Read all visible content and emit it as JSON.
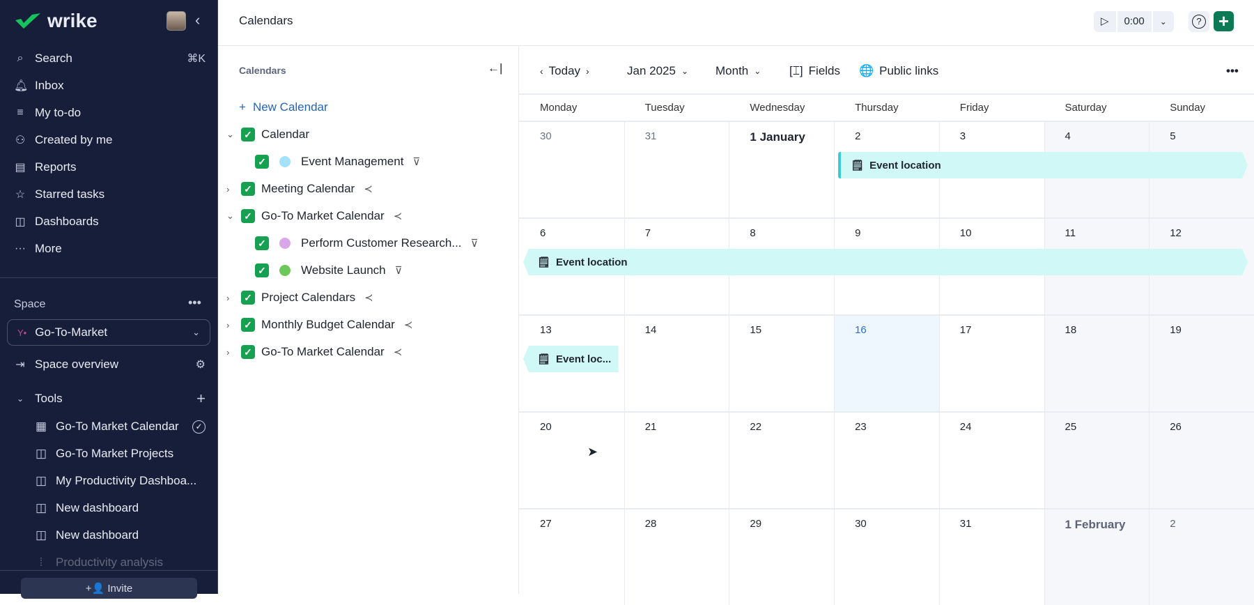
{
  "sidebar": {
    "logo": "wrike",
    "nav": [
      {
        "label": "Search",
        "icon": "search-icon",
        "shortcut": "⌘K"
      },
      {
        "label": "Inbox",
        "icon": "bell-icon"
      },
      {
        "label": "My to-do",
        "icon": "todo-icon"
      },
      {
        "label": "Created by me",
        "icon": "created-icon"
      },
      {
        "label": "Reports",
        "icon": "reports-icon"
      },
      {
        "label": "Starred tasks",
        "icon": "star-icon"
      },
      {
        "label": "Dashboards",
        "icon": "dashboard-icon"
      },
      {
        "label": "More",
        "icon": "more-icon"
      }
    ],
    "space_label": "Space",
    "space_selected": "Go-To-Market",
    "space_overview": "Space overview",
    "tools_label": "Tools",
    "tools": [
      {
        "label": "Go-To Market Calendar",
        "icon": "calendar-icon"
      },
      {
        "label": "Go-To Market Projects",
        "icon": "dashboard-icon"
      },
      {
        "label": "My Productivity Dashboa...",
        "icon": "dashboard-icon"
      },
      {
        "label": "New dashboard",
        "icon": "dashboard-icon"
      },
      {
        "label": "New dashboard",
        "icon": "dashboard-icon"
      },
      {
        "label": "Productivity analysis",
        "icon": "analysis-icon"
      }
    ],
    "invite": "Invite"
  },
  "header": {
    "title": "Calendars",
    "timer": "0:00"
  },
  "calendars_panel": {
    "title": "Calendars",
    "new_calendar": "New Calendar",
    "items": [
      {
        "label": "Calendar",
        "level": 0,
        "expanded": true,
        "checked": true
      },
      {
        "label": "Event Management",
        "level": 1,
        "checked": true,
        "color": "#a6e1fa",
        "trail": "filter-icon"
      },
      {
        "label": "Meeting Calendar",
        "level": 0,
        "expanded": false,
        "checked": true,
        "trail": "share-icon"
      },
      {
        "label": "Go-To Market Calendar",
        "level": 0,
        "expanded": true,
        "checked": true,
        "trail": "share-icon"
      },
      {
        "label": "Perform Customer Research...",
        "level": 1,
        "checked": true,
        "color": "#d9a7e8",
        "trail": "filter-icon"
      },
      {
        "label": "Website Launch",
        "level": 1,
        "checked": true,
        "color": "#6cc85a",
        "trail": "filter-icon"
      },
      {
        "label": "Project Calendars",
        "level": 0,
        "expanded": false,
        "checked": true,
        "trail": "share-icon"
      },
      {
        "label": "Monthly Budget Calendar",
        "level": 0,
        "expanded": false,
        "checked": true,
        "trail": "share-icon"
      },
      {
        "label": "Go-To Market Calendar",
        "level": 0,
        "expanded": false,
        "checked": true,
        "trail": "share-icon"
      }
    ]
  },
  "toolbar": {
    "today": "Today",
    "period": "Jan 2025",
    "view": "Month",
    "fields": "Fields",
    "public_links": "Public links"
  },
  "calendar": {
    "days": [
      "Monday",
      "Tuesday",
      "Wednesday",
      "Thursday",
      "Friday",
      "Saturday",
      "Sunday"
    ],
    "weeks": [
      [
        "30",
        "31",
        "1 January",
        "2",
        "3",
        "4",
        "5"
      ],
      [
        "6",
        "7",
        "8",
        "9",
        "10",
        "11",
        "12"
      ],
      [
        "13",
        "14",
        "15",
        "16",
        "17",
        "18",
        "19"
      ],
      [
        "20",
        "21",
        "22",
        "23",
        "24",
        "25",
        "26"
      ],
      [
        "27",
        "28",
        "29",
        "30",
        "31",
        "1 February",
        "2"
      ]
    ],
    "today": "16",
    "events": [
      {
        "label": "Event location",
        "week": 0,
        "start": 3,
        "end": 6
      },
      {
        "label": "Event location",
        "week": 1,
        "start": 0,
        "end": 6
      },
      {
        "label": "Event loc...",
        "week": 2,
        "start": 0,
        "end": 0
      }
    ],
    "colors": {
      "event": "#cff8f6",
      "event_edge": "#3cc8d0",
      "today_bg": "#eef6fe",
      "today_text": "#2a72c9",
      "weekend_bg": "#f6f7fa",
      "accent": "#0b7a55"
    }
  }
}
